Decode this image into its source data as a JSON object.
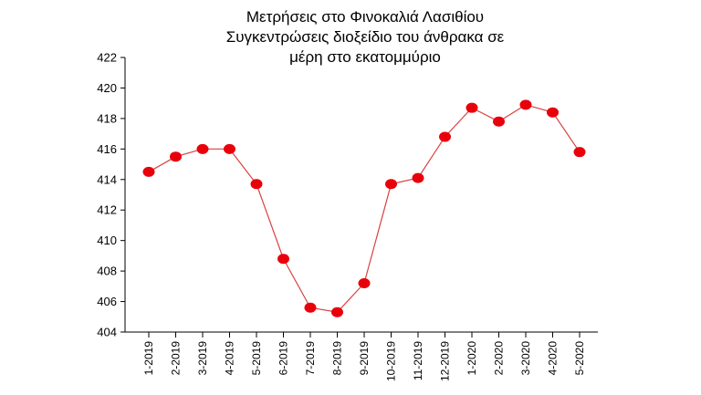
{
  "chart_data": {
    "type": "line",
    "title_lines": [
      "Μετρήσεις στο Φινοκαλιά Λασιθίου",
      "Συγκεντρώσεις διοξείδιο του άνθρακα  σε",
      "μέρη στο εκατομμύριο"
    ],
    "xlabel": "",
    "ylabel": "",
    "categories": [
      "1-2019",
      "2-2019",
      "3-2019",
      "4-2019",
      "5-2019",
      "6-2019",
      "7-2019",
      "8-2019",
      "9-2019",
      "10-2019",
      "11-2019",
      "12-2019",
      "1-2020",
      "2-2020",
      "3-2020",
      "4-2020",
      "5-2020"
    ],
    "values": [
      414.5,
      415.5,
      416.0,
      416.0,
      413.7,
      408.8,
      405.6,
      405.3,
      407.2,
      413.7,
      414.1,
      416.8,
      418.7,
      417.8,
      418.9,
      418.4,
      415.8
    ],
    "ylim": [
      404,
      422
    ],
    "yticks": [
      404,
      406,
      408,
      410,
      412,
      414,
      416,
      418,
      420,
      422
    ],
    "grid": false,
    "legend": "none",
    "colors": {
      "line": "#d94040",
      "marker": "#e8000b",
      "axis": "#000000"
    }
  }
}
